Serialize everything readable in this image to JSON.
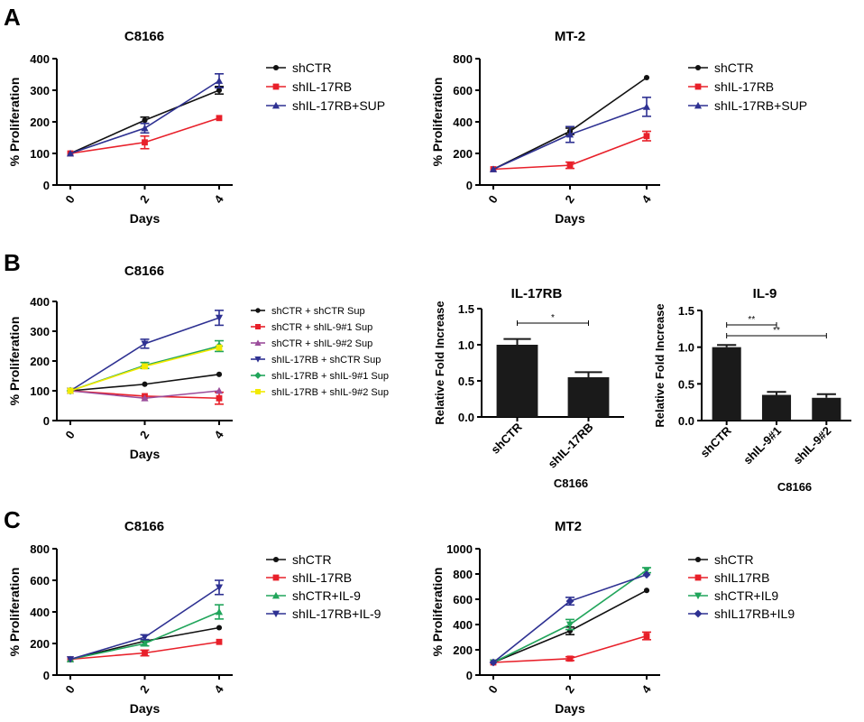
{
  "panels": [
    "A",
    "B",
    "C"
  ],
  "chart_data": [
    {
      "id": "A1",
      "type": "line",
      "title": "C8166",
      "xlabel": "Days",
      "ylabel": "% Proliferation",
      "x": [
        0,
        2,
        4
      ],
      "xticks": [
        "0",
        "2",
        "4"
      ],
      "ylim": [
        0,
        400
      ],
      "yticks": [
        "0",
        "100",
        "200",
        "300",
        "400"
      ],
      "series": [
        {
          "name": "shCTR",
          "color": "#111111",
          "marker": "circle",
          "values": [
            100,
            205,
            300
          ],
          "err": [
            0,
            10,
            12
          ]
        },
        {
          "name": "shIL-17RB",
          "color": "#e8202a",
          "marker": "square",
          "values": [
            100,
            135,
            212
          ],
          "err": [
            0,
            20,
            0
          ]
        },
        {
          "name": "shIL-17RB+SUP",
          "color": "#2e3192",
          "marker": "triangle-up",
          "values": [
            100,
            180,
            330
          ],
          "err": [
            0,
            15,
            22
          ]
        }
      ]
    },
    {
      "id": "A2",
      "type": "line",
      "title": "MT-2",
      "xlabel": "Days",
      "ylabel": "% Proliferation",
      "x": [
        0,
        2,
        4
      ],
      "xticks": [
        "0",
        "2",
        "4"
      ],
      "ylim": [
        0,
        800
      ],
      "yticks": [
        "0",
        "200",
        "400",
        "600",
        "800"
      ],
      "series": [
        {
          "name": "shCTR",
          "color": "#111111",
          "marker": "circle",
          "values": [
            100,
            340,
            680
          ],
          "err": [
            0,
            20,
            0
          ]
        },
        {
          "name": "shIL-17RB",
          "color": "#e8202a",
          "marker": "square",
          "values": [
            100,
            125,
            310
          ],
          "err": [
            0,
            20,
            30
          ]
        },
        {
          "name": "shIL-17RB+SUP",
          "color": "#2e3192",
          "marker": "triangle-up",
          "values": [
            100,
            320,
            495
          ],
          "err": [
            0,
            50,
            60
          ]
        }
      ]
    },
    {
      "id": "B1",
      "type": "line",
      "title": "C8166",
      "xlabel": "Days",
      "ylabel": "% Proliferation",
      "x": [
        0,
        2,
        4
      ],
      "xticks": [
        "0",
        "2",
        "4"
      ],
      "ylim": [
        0,
        400
      ],
      "yticks": [
        "0",
        "100",
        "200",
        "300",
        "400"
      ],
      "series": [
        {
          "name": "shCTR + shCTR Sup",
          "color": "#111111",
          "marker": "circle",
          "values": [
            100,
            122,
            155
          ],
          "err": [
            0,
            0,
            0
          ]
        },
        {
          "name": "shCTR + shIL-9#1 Sup",
          "color": "#e8202a",
          "marker": "square",
          "values": [
            100,
            82,
            75
          ],
          "err": [
            0,
            0,
            20
          ]
        },
        {
          "name": "shCTR + shIL-9#2 Sup",
          "color": "#9b4d9b",
          "marker": "triangle-up",
          "values": [
            100,
            75,
            100
          ],
          "err": [
            0,
            0,
            0
          ]
        },
        {
          "name": "shIL-17RB + shCTR Sup",
          "color": "#2e3192",
          "marker": "triangle-down",
          "values": [
            100,
            258,
            345
          ],
          "err": [
            0,
            15,
            25
          ]
        },
        {
          "name": "shIL-17RB + shIL-9#1 Sup",
          "color": "#21a55b",
          "marker": "diamond",
          "values": [
            100,
            185,
            250
          ],
          "err": [
            0,
            10,
            18
          ]
        },
        {
          "name": "shIL-17RB + shIL-9#2 Sup",
          "color": "#f2ea00",
          "marker": "square",
          "values": [
            100,
            182,
            245
          ],
          "err": [
            0,
            0,
            0
          ]
        }
      ]
    },
    {
      "id": "B2",
      "type": "bar",
      "title": "IL-17RB",
      "xlabel": "C8166",
      "ylabel": "Relative Fold Increase",
      "categories": [
        "shCTR",
        "shIL-17RB"
      ],
      "values": [
        1.0,
        0.55
      ],
      "err": [
        0.08,
        0.07
      ],
      "ylim": [
        0,
        1.5
      ],
      "yticks": [
        "0.0",
        "0.5",
        "1.0",
        "1.5"
      ],
      "significance": [
        {
          "from": 0,
          "to": 1,
          "label": "*"
        }
      ]
    },
    {
      "id": "B3",
      "type": "bar",
      "title": "IL-9",
      "xlabel": "C8166",
      "ylabel": "Relative Fold Increase",
      "categories": [
        "shCTR",
        "shIL-9#1",
        "shIL-9#2"
      ],
      "values": [
        1.0,
        0.35,
        0.31
      ],
      "err": [
        0.03,
        0.04,
        0.05
      ],
      "ylim": [
        0,
        1.5
      ],
      "yticks": [
        "0.0",
        "0.5",
        "1.0",
        "1.5"
      ],
      "significance": [
        {
          "from": 0,
          "to": 1,
          "label": "**"
        },
        {
          "from": 0,
          "to": 2,
          "label": "**"
        }
      ]
    },
    {
      "id": "C1",
      "type": "line",
      "title": "C8166",
      "xlabel": "Days",
      "ylabel": "% Proliferation",
      "x": [
        0,
        2,
        4
      ],
      "xticks": [
        "0",
        "2",
        "4"
      ],
      "ylim": [
        0,
        800
      ],
      "yticks": [
        "0",
        "200",
        "400",
        "600",
        "800"
      ],
      "series": [
        {
          "name": "shCTR",
          "color": "#111111",
          "marker": "circle",
          "values": [
            100,
            215,
            300
          ],
          "err": [
            0,
            0,
            0
          ]
        },
        {
          "name": "shIL-17RB",
          "color": "#e8202a",
          "marker": "square",
          "values": [
            100,
            140,
            210
          ],
          "err": [
            0,
            18,
            0
          ]
        },
        {
          "name": "shCTR+IL-9",
          "color": "#21a55b",
          "marker": "triangle-up",
          "values": [
            100,
            200,
            400
          ],
          "err": [
            0,
            15,
            45
          ]
        },
        {
          "name": "shIL-17RB+IL-9",
          "color": "#2e3192",
          "marker": "triangle-down",
          "values": [
            100,
            240,
            555
          ],
          "err": [
            0,
            15,
            45
          ]
        }
      ]
    },
    {
      "id": "C2",
      "type": "line",
      "title": "MT2",
      "xlabel": "Days",
      "ylabel": "% Proliferation",
      "x": [
        0,
        2,
        4
      ],
      "xticks": [
        "0",
        "2",
        "4"
      ],
      "ylim": [
        0,
        1000
      ],
      "yticks": [
        "0",
        "200",
        "400",
        "600",
        "800",
        "1000"
      ],
      "series": [
        {
          "name": "shCTR",
          "color": "#111111",
          "marker": "circle",
          "values": [
            100,
            350,
            670
          ],
          "err": [
            0,
            30,
            0
          ]
        },
        {
          "name": "shIL17RB",
          "color": "#e8202a",
          "marker": "square",
          "values": [
            100,
            130,
            310
          ],
          "err": [
            0,
            15,
            30
          ]
        },
        {
          "name": "shCTR+IL9",
          "color": "#21a55b",
          "marker": "triangle-down",
          "values": [
            100,
            400,
            830
          ],
          "err": [
            0,
            40,
            20
          ]
        },
        {
          "name": "shIL17RB+IL9",
          "color": "#2e3192",
          "marker": "diamond",
          "values": [
            100,
            585,
            795
          ],
          "err": [
            0,
            30,
            0
          ]
        }
      ]
    }
  ]
}
